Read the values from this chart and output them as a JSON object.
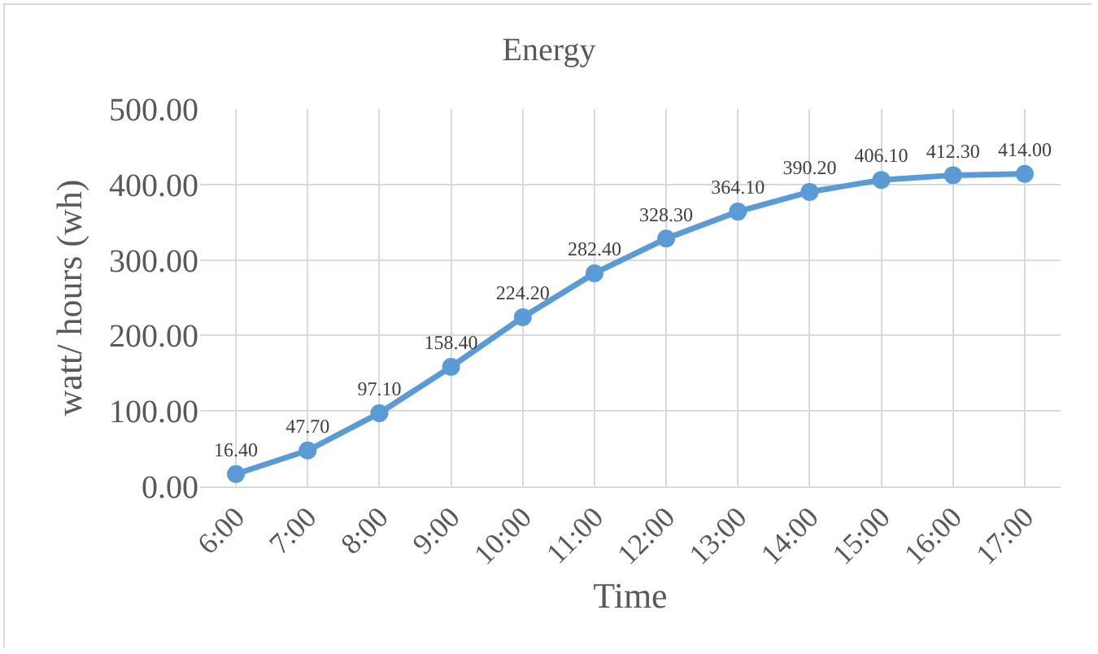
{
  "chart_data": {
    "type": "line",
    "title": "Energy",
    "xlabel": "Time",
    "ylabel": "watt/ hours (wh)",
    "categories": [
      "6:00",
      "7:00",
      "8:00",
      "9:00",
      "10:00",
      "11:00",
      "12:00",
      "13:00",
      "14:00",
      "15:00",
      "16:00",
      "17:00"
    ],
    "series": [
      {
        "color": "#5b9bd5",
        "values": [
          16.4,
          47.7,
          97.1,
          158.4,
          224.2,
          282.4,
          328.3,
          364.1,
          390.2,
          406.1,
          412.3,
          414.0
        ],
        "value_labels": [
          "16.40",
          "47.70",
          "97.10",
          "158.40",
          "224.20",
          "282.40",
          "328.30",
          "364.10",
          "390.20",
          "406.10",
          "412.30",
          "414.00"
        ]
      }
    ],
    "ylim": [
      0,
      500
    ],
    "yticks": [
      {
        "value": 0,
        "label": "0.00"
      },
      {
        "value": 100,
        "label": "100.00"
      },
      {
        "value": 200,
        "label": "200.00"
      },
      {
        "value": 300,
        "label": "300.00"
      },
      {
        "value": 400,
        "label": "400.00"
      },
      {
        "value": 500,
        "label": "500.00"
      }
    ],
    "grid": true,
    "marker": "circle",
    "line_style": "solid"
  }
}
